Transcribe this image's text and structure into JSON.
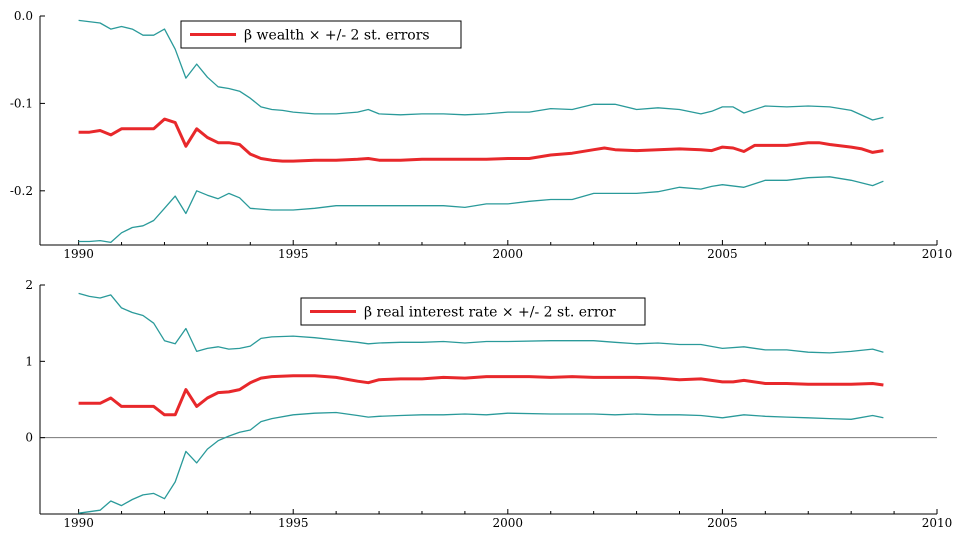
{
  "chart_data": [
    {
      "type": "line",
      "xlim": [
        1989.1,
        2010
      ],
      "ylim": [
        -0.262,
        0.0
      ],
      "x_ticks": [
        1990,
        1995,
        2000,
        2005,
        2010
      ],
      "x_tick_labels": [
        "1990",
        "1995",
        "2000",
        "2005",
        "2010"
      ],
      "y_ticks": [
        0.0,
        -0.1,
        -0.2
      ],
      "y_tick_labels": [
        "0.0",
        "-0.1",
        "-0.2"
      ],
      "zero_line": false,
      "legend": {
        "placement": "top-center",
        "label": "β wealth × +/- 2 st. errors",
        "color": "#e8282b"
      },
      "series": [
        {
          "role": "estimate",
          "color": "#e8282b",
          "x": [
            1990.0,
            1990.25,
            1990.5,
            1990.75,
            1991.0,
            1991.25,
            1991.5,
            1991.75,
            1992.0,
            1992.25,
            1992.5,
            1992.75,
            1993.0,
            1993.25,
            1993.5,
            1993.75,
            1994.0,
            1994.25,
            1994.5,
            1994.75,
            1995.0,
            1995.5,
            1996.0,
            1996.5,
            1996.75,
            1997.0,
            1997.5,
            1998.0,
            1998.5,
            1999.0,
            1999.5,
            2000.0,
            2000.5,
            2001.0,
            2001.5,
            2002.0,
            2002.25,
            2002.5,
            2003.0,
            2003.5,
            2004.0,
            2004.5,
            2004.75,
            2005.0,
            2005.25,
            2005.5,
            2005.75,
            2006.0,
            2006.5,
            2007.0,
            2007.25,
            2007.5,
            2008.0,
            2008.25,
            2008.5,
            2008.75
          ],
          "y": [
            -0.133,
            -0.133,
            -0.131,
            -0.136,
            -0.129,
            -0.129,
            -0.129,
            -0.129,
            -0.118,
            -0.122,
            -0.149,
            -0.129,
            -0.139,
            -0.145,
            -0.145,
            -0.147,
            -0.158,
            -0.163,
            -0.165,
            -0.166,
            -0.166,
            -0.165,
            -0.165,
            -0.164,
            -0.163,
            -0.165,
            -0.165,
            -0.164,
            -0.164,
            -0.164,
            -0.164,
            -0.163,
            -0.163,
            -0.159,
            -0.157,
            -0.153,
            -0.151,
            -0.153,
            -0.154,
            -0.153,
            -0.152,
            -0.153,
            -0.154,
            -0.15,
            -0.151,
            -0.155,
            -0.148,
            -0.148,
            -0.148,
            -0.145,
            -0.145,
            -0.147,
            -0.15,
            -0.152,
            -0.156,
            -0.154
          ]
        },
        {
          "role": "upper band",
          "color": "#2a9a9a",
          "x": [
            1990.0,
            1990.5,
            1990.75,
            1991.0,
            1991.25,
            1991.5,
            1991.75,
            1992.0,
            1992.25,
            1992.5,
            1992.75,
            1993.0,
            1993.25,
            1993.5,
            1993.75,
            1994.0,
            1994.25,
            1994.5,
            1994.75,
            1995.0,
            1995.5,
            1996.0,
            1996.5,
            1996.75,
            1997.0,
            1997.5,
            1998.0,
            1998.5,
            1999.0,
            1999.5,
            2000.0,
            2000.5,
            2001.0,
            2001.5,
            2002.0,
            2002.5,
            2003.0,
            2003.5,
            2004.0,
            2004.5,
            2004.75,
            2005.0,
            2005.25,
            2005.5,
            2006.0,
            2006.5,
            2007.0,
            2007.5,
            2008.0,
            2008.5,
            2008.75
          ],
          "y": [
            -0.005,
            -0.008,
            -0.015,
            -0.012,
            -0.015,
            -0.022,
            -0.022,
            -0.015,
            -0.038,
            -0.071,
            -0.055,
            -0.07,
            -0.081,
            -0.083,
            -0.086,
            -0.094,
            -0.104,
            -0.107,
            -0.108,
            -0.11,
            -0.112,
            -0.112,
            -0.11,
            -0.107,
            -0.112,
            -0.113,
            -0.112,
            -0.112,
            -0.113,
            -0.112,
            -0.11,
            -0.11,
            -0.106,
            -0.107,
            -0.101,
            -0.101,
            -0.107,
            -0.105,
            -0.107,
            -0.112,
            -0.109,
            -0.104,
            -0.104,
            -0.111,
            -0.103,
            -0.104,
            -0.103,
            -0.104,
            -0.108,
            -0.119,
            -0.116
          ]
        },
        {
          "role": "lower band",
          "color": "#2a9a9a",
          "x": [
            1990.0,
            1990.25,
            1990.5,
            1990.75,
            1991.0,
            1991.25,
            1991.5,
            1991.75,
            1992.0,
            1992.25,
            1992.5,
            1992.75,
            1993.0,
            1993.25,
            1993.5,
            1993.75,
            1994.0,
            1994.5,
            1995.0,
            1995.5,
            1996.0,
            1997.0,
            1998.0,
            1998.5,
            1999.0,
            1999.5,
            2000.0,
            2000.5,
            2001.0,
            2001.5,
            2002.0,
            2002.5,
            2003.0,
            2003.5,
            2004.0,
            2004.5,
            2004.75,
            2005.0,
            2005.5,
            2006.0,
            2006.5,
            2007.0,
            2007.5,
            2008.0,
            2008.5,
            2008.75
          ],
          "y": [
            -0.258,
            -0.258,
            -0.257,
            -0.259,
            -0.248,
            -0.242,
            -0.24,
            -0.234,
            -0.22,
            -0.206,
            -0.226,
            -0.2,
            -0.205,
            -0.209,
            -0.203,
            -0.208,
            -0.22,
            -0.222,
            -0.222,
            -0.22,
            -0.217,
            -0.217,
            -0.217,
            -0.217,
            -0.219,
            -0.215,
            -0.215,
            -0.212,
            -0.21,
            -0.21,
            -0.203,
            -0.203,
            -0.203,
            -0.201,
            -0.196,
            -0.198,
            -0.195,
            -0.193,
            -0.196,
            -0.188,
            -0.188,
            -0.185,
            -0.184,
            -0.188,
            -0.194,
            -0.189
          ]
        }
      ]
    },
    {
      "type": "line",
      "xlim": [
        1989.1,
        2010
      ],
      "ylim": [
        -1.0,
        2.0
      ],
      "x_ticks": [
        1990,
        1995,
        2000,
        2005,
        2010
      ],
      "x_tick_labels": [
        "1990",
        "1995",
        "2000",
        "2005",
        "2010"
      ],
      "y_ticks": [
        2,
        1,
        0
      ],
      "y_tick_labels": [
        "2",
        "1",
        "0"
      ],
      "zero_line": true,
      "legend": {
        "placement": "top-center",
        "label": "β real interest rate × +/- 2 st. error",
        "color": "#e8282b"
      },
      "series": [
        {
          "role": "estimate",
          "color": "#e8282b",
          "x": [
            1990.0,
            1990.25,
            1990.5,
            1990.75,
            1991.0,
            1991.25,
            1991.5,
            1991.75,
            1992.0,
            1992.25,
            1992.5,
            1992.75,
            1993.0,
            1993.25,
            1993.5,
            1993.75,
            1994.0,
            1994.25,
            1994.5,
            1995.0,
            1995.5,
            1996.0,
            1996.5,
            1996.75,
            1997.0,
            1997.5,
            1998.0,
            1998.5,
            1999.0,
            1999.5,
            2000.0,
            2000.5,
            2001.0,
            2001.5,
            2002.0,
            2002.5,
            2003.0,
            2003.5,
            2004.0,
            2004.5,
            2005.0,
            2005.25,
            2005.5,
            2006.0,
            2006.5,
            2007.0,
            2007.5,
            2008.0,
            2008.5,
            2008.75
          ],
          "y": [
            0.45,
            0.45,
            0.45,
            0.52,
            0.41,
            0.41,
            0.41,
            0.41,
            0.3,
            0.3,
            0.63,
            0.41,
            0.52,
            0.59,
            0.6,
            0.63,
            0.72,
            0.78,
            0.8,
            0.81,
            0.81,
            0.79,
            0.74,
            0.72,
            0.76,
            0.77,
            0.77,
            0.79,
            0.78,
            0.8,
            0.8,
            0.8,
            0.79,
            0.8,
            0.79,
            0.79,
            0.79,
            0.78,
            0.76,
            0.77,
            0.73,
            0.73,
            0.75,
            0.71,
            0.71,
            0.7,
            0.7,
            0.7,
            0.71,
            0.69
          ]
        },
        {
          "role": "upper band",
          "color": "#2a9a9a",
          "x": [
            1990.0,
            1990.25,
            1990.5,
            1990.75,
            1991.0,
            1991.25,
            1991.5,
            1991.75,
            1992.0,
            1992.25,
            1992.5,
            1992.75,
            1993.0,
            1993.25,
            1993.5,
            1993.75,
            1994.0,
            1994.25,
            1994.5,
            1995.0,
            1995.5,
            1996.0,
            1996.5,
            1996.75,
            1997.0,
            1997.5,
            1998.0,
            1998.5,
            1999.0,
            1999.5,
            2000.0,
            2001.0,
            2002.0,
            2002.5,
            2003.0,
            2003.5,
            2004.0,
            2004.5,
            2005.0,
            2005.5,
            2006.0,
            2006.5,
            2007.0,
            2007.5,
            2008.0,
            2008.5,
            2008.75
          ],
          "y": [
            1.89,
            1.85,
            1.83,
            1.87,
            1.7,
            1.64,
            1.6,
            1.5,
            1.27,
            1.23,
            1.43,
            1.13,
            1.17,
            1.19,
            1.16,
            1.17,
            1.2,
            1.3,
            1.32,
            1.33,
            1.31,
            1.28,
            1.25,
            1.23,
            1.24,
            1.25,
            1.25,
            1.26,
            1.24,
            1.26,
            1.26,
            1.27,
            1.27,
            1.25,
            1.23,
            1.24,
            1.22,
            1.22,
            1.17,
            1.19,
            1.15,
            1.15,
            1.12,
            1.11,
            1.13,
            1.16,
            1.12
          ]
        },
        {
          "role": "lower band",
          "color": "#2a9a9a",
          "x": [
            1990.0,
            1990.25,
            1990.5,
            1990.75,
            1991.0,
            1991.25,
            1991.5,
            1991.75,
            1992.0,
            1992.25,
            1992.5,
            1992.75,
            1993.0,
            1993.25,
            1993.5,
            1993.75,
            1994.0,
            1994.25,
            1994.5,
            1995.0,
            1995.5,
            1996.0,
            1996.5,
            1996.75,
            1997.0,
            1997.5,
            1998.0,
            1998.5,
            1999.0,
            1999.5,
            2000.0,
            2001.0,
            2002.0,
            2002.5,
            2003.0,
            2003.5,
            2004.0,
            2004.5,
            2005.0,
            2005.5,
            2006.0,
            2006.5,
            2007.0,
            2007.5,
            2008.0,
            2008.5,
            2008.75
          ],
          "y": [
            -0.99,
            -0.97,
            -0.95,
            -0.83,
            -0.89,
            -0.81,
            -0.75,
            -0.73,
            -0.8,
            -0.58,
            -0.18,
            -0.33,
            -0.15,
            -0.04,
            0.02,
            0.07,
            0.1,
            0.21,
            0.25,
            0.3,
            0.32,
            0.33,
            0.29,
            0.27,
            0.28,
            0.29,
            0.3,
            0.3,
            0.31,
            0.3,
            0.32,
            0.31,
            0.31,
            0.3,
            0.31,
            0.3,
            0.3,
            0.29,
            0.26,
            0.3,
            0.28,
            0.27,
            0.26,
            0.25,
            0.24,
            0.29,
            0.26
          ]
        }
      ]
    }
  ]
}
